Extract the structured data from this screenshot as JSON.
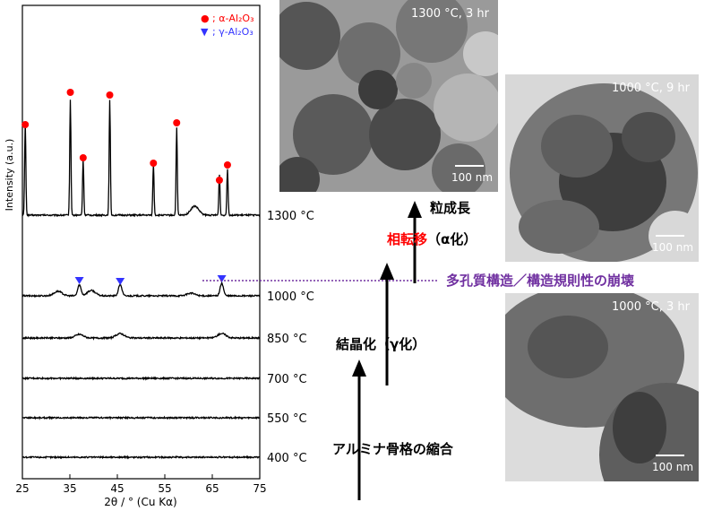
{
  "chart_data": {
    "type": "line",
    "xlabel": "2θ / ° (Cu Kα)",
    "ylabel": "Intensity (a.u.)",
    "xlim": [
      25,
      75
    ],
    "xticks": [
      25,
      35,
      45,
      55,
      65,
      75
    ],
    "legend": [
      {
        "symbol": "●",
        "label": "; α-Al₂O₃",
        "color": "#ff0000"
      },
      {
        "symbol": "▼",
        "label": "; γ-Al₂O₃",
        "color": "#3333ff"
      }
    ],
    "series": [
      {
        "name": "1300 °C",
        "baseline": 240,
        "peaks": [
          [
            25.6,
            105
          ],
          [
            35.1,
            128
          ],
          [
            37.8,
            62
          ],
          [
            43.4,
            128
          ],
          [
            52.6,
            58
          ],
          [
            57.5,
            97
          ],
          [
            61.3,
            10
          ],
          [
            66.5,
            45
          ],
          [
            68.2,
            52
          ]
        ]
      },
      {
        "name": "1000 °C",
        "baseline": 330,
        "peaks": [
          [
            32.5,
            5
          ],
          [
            37.0,
            12
          ],
          [
            39.5,
            6
          ],
          [
            45.6,
            13
          ],
          [
            60.5,
            3
          ],
          [
            67.0,
            14
          ]
        ]
      },
      {
        "name": "850 °C",
        "baseline": 377,
        "peaks": [
          [
            37.0,
            4
          ],
          [
            45.6,
            5
          ],
          [
            67.0,
            5
          ]
        ]
      },
      {
        "name": "700 °C",
        "baseline": 422,
        "peaks": []
      },
      {
        "name": "550 °C",
        "baseline": 466,
        "peaks": []
      },
      {
        "name": "400 °C",
        "baseline": 510,
        "peaks": []
      }
    ],
    "alpha_markers": [
      [
        25.6,
        139
      ],
      [
        35.1,
        103
      ],
      [
        37.8,
        176
      ],
      [
        43.4,
        106
      ],
      [
        52.6,
        182
      ],
      [
        57.5,
        137
      ],
      [
        66.5,
        201
      ],
      [
        68.2,
        184
      ]
    ],
    "gamma_markers": [
      [
        37.0,
        313
      ],
      [
        45.6,
        314
      ],
      [
        67.0,
        311
      ]
    ]
  },
  "images": [
    {
      "label": "1300 °C, 3 hr",
      "scale": "100 nm"
    },
    {
      "label": "1000 °C, 9 hr",
      "scale": "100 nm"
    },
    {
      "label": "1000 °C, 3 hr",
      "scale": "100 nm"
    }
  ],
  "annotations": {
    "grain_growth": "粒成長",
    "phase_transition": "相転移",
    "alpha_conversion": "（α化）",
    "porous_collapse": "多孔質構造／構造規則性の崩壊",
    "crystallization": "結晶化（γ化）",
    "shrinkage": "アルミナ骨格の縮合"
  },
  "colors": {
    "alpha": "#ff0000",
    "gamma": "#3333ff",
    "phase": "#ff0000",
    "porous": "#7030a0"
  }
}
